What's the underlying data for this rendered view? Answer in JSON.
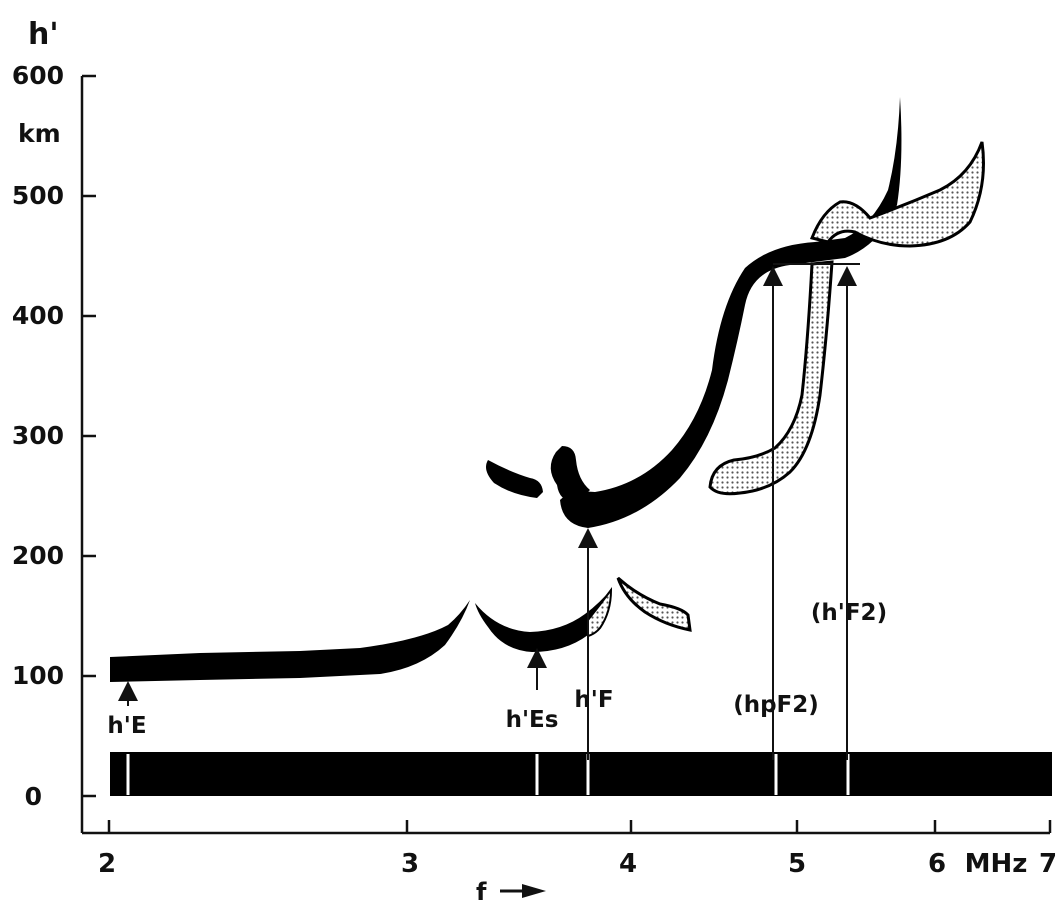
{
  "axes": {
    "y_label": "h'",
    "y_unit": "km",
    "y_ticks": [
      "600",
      "500",
      "400",
      "300",
      "200",
      "100",
      "0"
    ],
    "x_ticks": [
      "2",
      "3",
      "4",
      "5",
      "6"
    ],
    "x_unit_label": "MHz",
    "x_end_tick": "7",
    "x_label": "f"
  },
  "annotations": {
    "hE": "h'E",
    "hEs": "h'Es",
    "hF": "h'F",
    "hpF2": "(hpF2)",
    "hF2": "(h'F2)"
  },
  "colors": {
    "trace": "#000000",
    "stipple": "#555555",
    "axis": "#111111"
  }
}
